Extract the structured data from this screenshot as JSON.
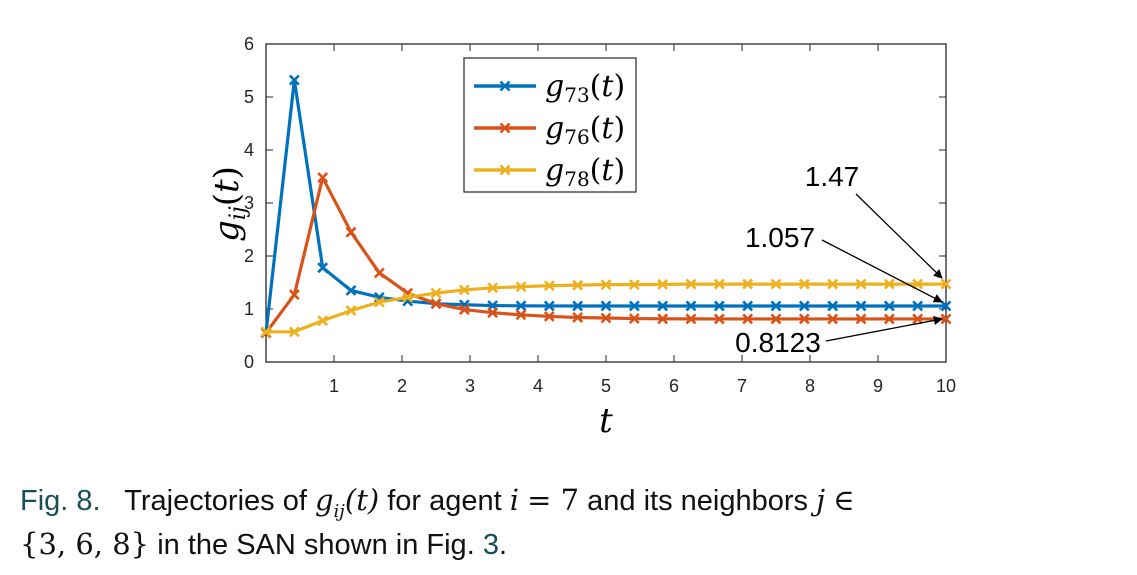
{
  "chart_data": {
    "type": "line",
    "xlabel": "t",
    "ylabel": "g_ij(t)",
    "xlim": [
      0,
      10
    ],
    "ylim": [
      0,
      6
    ],
    "xticks": [
      "1",
      "2",
      "3",
      "4",
      "5",
      "6",
      "7",
      "8",
      "9",
      "10"
    ],
    "yticks": [
      "0",
      "1",
      "2",
      "3",
      "4",
      "5",
      "6"
    ],
    "x": [
      0.0,
      0.4167,
      0.8333,
      1.25,
      1.6667,
      2.0833,
      2.5,
      2.9167,
      3.3333,
      3.75,
      4.1667,
      4.5833,
      5.0,
      5.4167,
      5.8333,
      6.25,
      6.6667,
      7.0833,
      7.5,
      7.9167,
      8.3333,
      8.75,
      9.1667,
      9.5833,
      10.0
    ],
    "series": [
      {
        "name": "g73(t)",
        "label_main": "g",
        "label_sub": "73",
        "label_tail": "(t)",
        "color": "#0072BD",
        "values": [
          0.55,
          5.32,
          1.78,
          1.35,
          1.22,
          1.15,
          1.1,
          1.08,
          1.065,
          1.06,
          1.058,
          1.057,
          1.057,
          1.057,
          1.057,
          1.057,
          1.057,
          1.057,
          1.057,
          1.057,
          1.057,
          1.057,
          1.057,
          1.057,
          1.057
        ]
      },
      {
        "name": "g76(t)",
        "label_main": "g",
        "label_sub": "76",
        "label_tail": "(t)",
        "color": "#D95319",
        "values": [
          0.55,
          1.27,
          3.48,
          2.45,
          1.68,
          1.3,
          1.1,
          0.99,
          0.93,
          0.89,
          0.86,
          0.84,
          0.83,
          0.82,
          0.815,
          0.813,
          0.8123,
          0.8123,
          0.8123,
          0.8123,
          0.8123,
          0.8123,
          0.8123,
          0.8123,
          0.8123
        ]
      },
      {
        "name": "g78(t)",
        "label_main": "g",
        "label_sub": "78",
        "label_tail": "(t)",
        "color": "#EDB120",
        "values": [
          0.57,
          0.57,
          0.78,
          0.97,
          1.13,
          1.22,
          1.3,
          1.36,
          1.4,
          1.42,
          1.44,
          1.45,
          1.46,
          1.46,
          1.465,
          1.47,
          1.47,
          1.47,
          1.47,
          1.47,
          1.47,
          1.47,
          1.47,
          1.47,
          1.47
        ]
      }
    ],
    "annotations": [
      {
        "text": "1.47",
        "value": 1.47,
        "series": "g78(t)"
      },
      {
        "text": "1.057",
        "value": 1.057,
        "series": "g73(t)"
      },
      {
        "text": "0.8123",
        "value": 0.8123,
        "series": "g76(t)"
      }
    ]
  },
  "caption": {
    "label": "Fig. 8.",
    "text_1": "Trajectories of",
    "math_1": "g",
    "math_1_sub": "ij",
    "math_1_tail": "(t)",
    "text_2": "for agent",
    "math_2": "i",
    "math_2_tail": "= 7",
    "text_3": "and its neighbors",
    "math_3": "j",
    "math_3_tail": "∈",
    "set": "{3, 6, 8}",
    "text_4": "in the SAN shown in Fig.",
    "fig_ref": "3",
    "end": "."
  }
}
